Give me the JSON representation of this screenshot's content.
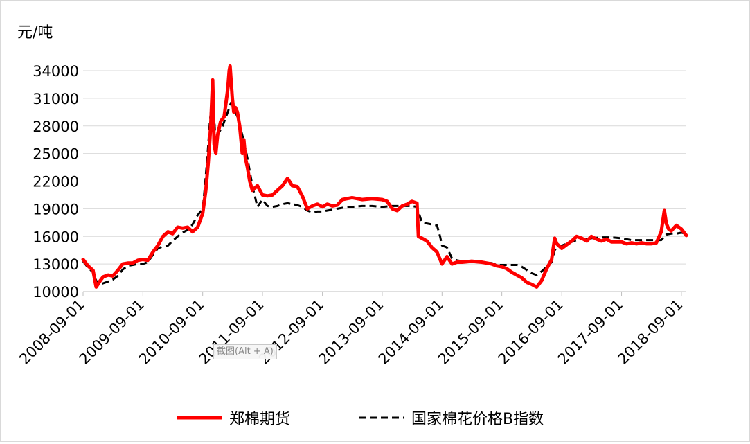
{
  "chart_data": {
    "type": "line",
    "ylabel": "元/吨",
    "ylim": [
      10000,
      35000
    ],
    "yticks": [
      10000,
      13000,
      16000,
      19000,
      22000,
      25000,
      28000,
      31000,
      34000
    ],
    "xticks": [
      "2008-09-01",
      "2009-09-01",
      "2010-09-01",
      "2011-09-01",
      "2012-09-01",
      "2013-09-01",
      "2014-09-01",
      "2015-09-01",
      "2016-09-01",
      "2017-09-01",
      "2018-09-01"
    ],
    "xrange": [
      "2008-09-01",
      "2018-10-01"
    ],
    "grid": "horizontal",
    "legend_position": "bottom",
    "series": [
      {
        "name": "郑棉期货",
        "color": "#ff0000",
        "style": "solid",
        "points": [
          [
            "2008-09-01",
            13500
          ],
          [
            "2008-10-01",
            12800
          ],
          [
            "2008-11-01",
            12300
          ],
          [
            "2008-11-20",
            10500
          ],
          [
            "2008-12-15",
            11200
          ],
          [
            "2009-01-01",
            11600
          ],
          [
            "2009-02-01",
            11800
          ],
          [
            "2009-03-01",
            11700
          ],
          [
            "2009-04-01",
            12300
          ],
          [
            "2009-05-01",
            13000
          ],
          [
            "2009-06-01",
            13100
          ],
          [
            "2009-07-01",
            13100
          ],
          [
            "2009-08-01",
            13400
          ],
          [
            "2009-09-01",
            13500
          ],
          [
            "2009-10-01",
            13400
          ],
          [
            "2009-11-01",
            14300
          ],
          [
            "2009-12-01",
            15000
          ],
          [
            "2010-01-01",
            16000
          ],
          [
            "2010-02-01",
            16500
          ],
          [
            "2010-03-01",
            16300
          ],
          [
            "2010-04-01",
            17000
          ],
          [
            "2010-05-01",
            16900
          ],
          [
            "2010-06-01",
            17000
          ],
          [
            "2010-07-01",
            16500
          ],
          [
            "2010-08-01",
            17000
          ],
          [
            "2010-09-01",
            18500
          ],
          [
            "2010-09-20",
            21000
          ],
          [
            "2010-10-05",
            24000
          ],
          [
            "2010-10-20",
            28000
          ],
          [
            "2010-11-01",
            33000
          ],
          [
            "2010-11-10",
            26000
          ],
          [
            "2010-11-20",
            25000
          ],
          [
            "2010-12-01",
            27000
          ],
          [
            "2010-12-20",
            28500
          ],
          [
            "2011-01-10",
            29000
          ],
          [
            "2011-02-01",
            32000
          ],
          [
            "2011-02-10",
            34000
          ],
          [
            "2011-02-15",
            34500
          ],
          [
            "2011-03-01",
            31000
          ],
          [
            "2011-03-10",
            29500
          ],
          [
            "2011-03-20",
            30000
          ],
          [
            "2011-04-01",
            29500
          ],
          [
            "2011-04-15",
            28000
          ],
          [
            "2011-05-01",
            25000
          ],
          [
            "2011-05-10",
            26500
          ],
          [
            "2011-05-20",
            24500
          ],
          [
            "2011-06-01",
            23500
          ],
          [
            "2011-06-15",
            22000
          ],
          [
            "2011-07-01",
            21000
          ],
          [
            "2011-08-01",
            21500
          ],
          [
            "2011-09-01",
            20500
          ],
          [
            "2011-10-01",
            20400
          ],
          [
            "2011-11-01",
            20500
          ],
          [
            "2011-12-01",
            21000
          ],
          [
            "2012-01-01",
            21500
          ],
          [
            "2012-02-01",
            22300
          ],
          [
            "2012-03-01",
            21500
          ],
          [
            "2012-04-01",
            21400
          ],
          [
            "2012-05-01",
            20400
          ],
          [
            "2012-06-01",
            19000
          ],
          [
            "2012-07-01",
            19300
          ],
          [
            "2012-08-01",
            19500
          ],
          [
            "2012-09-01",
            19200
          ],
          [
            "2012-10-01",
            19500
          ],
          [
            "2012-11-01",
            19300
          ],
          [
            "2012-12-01",
            19400
          ],
          [
            "2013-01-01",
            20000
          ],
          [
            "2013-03-01",
            20200
          ],
          [
            "2013-05-01",
            20000
          ],
          [
            "2013-07-01",
            20100
          ],
          [
            "2013-09-01",
            20000
          ],
          [
            "2013-10-01",
            19800
          ],
          [
            "2013-11-01",
            19000
          ],
          [
            "2013-12-01",
            18800
          ],
          [
            "2014-01-01",
            19300
          ],
          [
            "2014-02-01",
            19500
          ],
          [
            "2014-03-01",
            19800
          ],
          [
            "2014-04-01",
            19600
          ],
          [
            "2014-04-10",
            16000
          ],
          [
            "2014-05-01",
            15800
          ],
          [
            "2014-06-01",
            15500
          ],
          [
            "2014-07-01",
            14800
          ],
          [
            "2014-08-01",
            14300
          ],
          [
            "2014-09-01",
            13000
          ],
          [
            "2014-10-01",
            13800
          ],
          [
            "2014-11-01",
            13000
          ],
          [
            "2014-12-01",
            13200
          ],
          [
            "2015-01-01",
            13200
          ],
          [
            "2015-03-01",
            13300
          ],
          [
            "2015-05-01",
            13200
          ],
          [
            "2015-07-01",
            13000
          ],
          [
            "2015-08-01",
            12800
          ],
          [
            "2015-09-01",
            12700
          ],
          [
            "2015-10-01",
            12500
          ],
          [
            "2015-11-01",
            12100
          ],
          [
            "2015-12-01",
            11800
          ],
          [
            "2016-01-01",
            11500
          ],
          [
            "2016-02-01",
            11000
          ],
          [
            "2016-03-01",
            10800
          ],
          [
            "2016-04-01",
            10500
          ],
          [
            "2016-05-01",
            11200
          ],
          [
            "2016-06-01",
            12500
          ],
          [
            "2016-07-01",
            13500
          ],
          [
            "2016-07-20",
            15800
          ],
          [
            "2016-08-01",
            15200
          ],
          [
            "2016-09-01",
            14700
          ],
          [
            "2016-10-01",
            15100
          ],
          [
            "2016-11-01",
            15500
          ],
          [
            "2016-12-01",
            16000
          ],
          [
            "2017-01-01",
            15800
          ],
          [
            "2017-02-01",
            15500
          ],
          [
            "2017-03-01",
            16000
          ],
          [
            "2017-04-01",
            15700
          ],
          [
            "2017-05-01",
            15500
          ],
          [
            "2017-06-01",
            15700
          ],
          [
            "2017-07-01",
            15400
          ],
          [
            "2017-08-01",
            15400
          ],
          [
            "2017-09-01",
            15400
          ],
          [
            "2017-10-01",
            15200
          ],
          [
            "2017-11-01",
            15300
          ],
          [
            "2017-12-01",
            15200
          ],
          [
            "2018-01-01",
            15300
          ],
          [
            "2018-02-01",
            15200
          ],
          [
            "2018-03-01",
            15200
          ],
          [
            "2018-04-01",
            15300
          ],
          [
            "2018-05-01",
            16500
          ],
          [
            "2018-05-20",
            18800
          ],
          [
            "2018-06-01",
            17400
          ],
          [
            "2018-06-15",
            16800
          ],
          [
            "2018-07-01",
            16600
          ],
          [
            "2018-08-01",
            17200
          ],
          [
            "2018-09-01",
            16800
          ],
          [
            "2018-10-01",
            16100
          ]
        ]
      },
      {
        "name": "国家棉花价格B指数",
        "color": "#000000",
        "style": "dashed",
        "points": [
          [
            "2008-09-01",
            13300
          ],
          [
            "2008-10-01",
            12600
          ],
          [
            "2008-11-01",
            12100
          ],
          [
            "2008-12-01",
            10700
          ],
          [
            "2009-01-01",
            10900
          ],
          [
            "2009-02-01",
            11100
          ],
          [
            "2009-03-01",
            11300
          ],
          [
            "2009-04-01",
            11700
          ],
          [
            "2009-05-01",
            12400
          ],
          [
            "2009-06-01",
            12800
          ],
          [
            "2009-07-01",
            12900
          ],
          [
            "2009-08-01",
            13000
          ],
          [
            "2009-09-01",
            13000
          ],
          [
            "2009-10-01",
            13200
          ],
          [
            "2009-11-01",
            14000
          ],
          [
            "2009-12-01",
            14700
          ],
          [
            "2010-01-01",
            14900
          ],
          [
            "2010-02-01",
            15000
          ],
          [
            "2010-03-01",
            15500
          ],
          [
            "2010-04-01",
            16000
          ],
          [
            "2010-05-01",
            16400
          ],
          [
            "2010-06-01",
            16700
          ],
          [
            "2010-07-01",
            17300
          ],
          [
            "2010-08-01",
            18300
          ],
          [
            "2010-09-01",
            19000
          ],
          [
            "2010-09-15",
            21500
          ],
          [
            "2010-10-01",
            25000
          ],
          [
            "2010-10-15",
            28500
          ],
          [
            "2010-11-01",
            31500
          ],
          [
            "2010-11-15",
            27500
          ],
          [
            "2010-12-01",
            27000
          ],
          [
            "2011-01-01",
            28000
          ],
          [
            "2011-02-01",
            29500
          ],
          [
            "2011-02-20",
            30500
          ],
          [
            "2011-03-01",
            30300
          ],
          [
            "2011-04-01",
            29000
          ],
          [
            "2011-05-01",
            27000
          ],
          [
            "2011-06-01",
            24500
          ],
          [
            "2011-07-01",
            21500
          ],
          [
            "2011-08-01",
            19200
          ],
          [
            "2011-09-01",
            20000
          ],
          [
            "2011-10-01",
            19300
          ],
          [
            "2011-11-01",
            19200
          ],
          [
            "2011-12-01",
            19300
          ],
          [
            "2012-01-01",
            19500
          ],
          [
            "2012-02-01",
            19600
          ],
          [
            "2012-03-01",
            19500
          ],
          [
            "2012-04-01",
            19400
          ],
          [
            "2012-05-01",
            19200
          ],
          [
            "2012-06-01",
            18800
          ],
          [
            "2012-07-01",
            18600
          ],
          [
            "2012-08-01",
            18700
          ],
          [
            "2012-09-01",
            18700
          ],
          [
            "2012-10-01",
            18800
          ],
          [
            "2012-11-01",
            18900
          ],
          [
            "2012-12-01",
            19000
          ],
          [
            "2013-01-01",
            19100
          ],
          [
            "2013-03-01",
            19200
          ],
          [
            "2013-05-01",
            19300
          ],
          [
            "2013-07-01",
            19300
          ],
          [
            "2013-09-01",
            19200
          ],
          [
            "2013-11-01",
            19300
          ],
          [
            "2014-01-01",
            19300
          ],
          [
            "2014-03-01",
            19300
          ],
          [
            "2014-04-01",
            19200
          ],
          [
            "2014-05-01",
            17500
          ],
          [
            "2014-06-01",
            17400
          ],
          [
            "2014-07-01",
            17300
          ],
          [
            "2014-08-01",
            17200
          ],
          [
            "2014-08-20",
            16000
          ],
          [
            "2014-09-01",
            15000
          ],
          [
            "2014-10-01",
            14800
          ],
          [
            "2014-11-01",
            13600
          ],
          [
            "2014-12-01",
            13400
          ],
          [
            "2015-01-01",
            13300
          ],
          [
            "2015-03-01",
            13200
          ],
          [
            "2015-05-01",
            13200
          ],
          [
            "2015-07-01",
            13100
          ],
          [
            "2015-08-01",
            12900
          ],
          [
            "2015-10-01",
            12900
          ],
          [
            "2015-12-01",
            12900
          ],
          [
            "2016-01-01",
            12700
          ],
          [
            "2016-03-01",
            12000
          ],
          [
            "2016-04-01",
            11800
          ],
          [
            "2016-05-01",
            12200
          ],
          [
            "2016-06-01",
            12700
          ],
          [
            "2016-07-01",
            13200
          ],
          [
            "2016-07-20",
            14500
          ],
          [
            "2016-08-01",
            14800
          ],
          [
            "2016-09-01",
            15000
          ],
          [
            "2016-10-01",
            15200
          ],
          [
            "2016-11-01",
            15400
          ],
          [
            "2016-12-01",
            15600
          ],
          [
            "2017-01-01",
            15700
          ],
          [
            "2017-03-01",
            15800
          ],
          [
            "2017-05-01",
            15900
          ],
          [
            "2017-07-01",
            15900
          ],
          [
            "2017-09-01",
            15800
          ],
          [
            "2017-11-01",
            15600
          ],
          [
            "2018-01-01",
            15600
          ],
          [
            "2018-03-01",
            15600
          ],
          [
            "2018-05-01",
            15600
          ],
          [
            "2018-06-01",
            16200
          ],
          [
            "2018-07-01",
            16300
          ],
          [
            "2018-08-01",
            16300
          ],
          [
            "2018-09-01",
            16400
          ],
          [
            "2018-10-01",
            16300
          ]
        ]
      }
    ]
  },
  "overlay": {
    "tooltip_text": "截图(Alt + A)"
  }
}
